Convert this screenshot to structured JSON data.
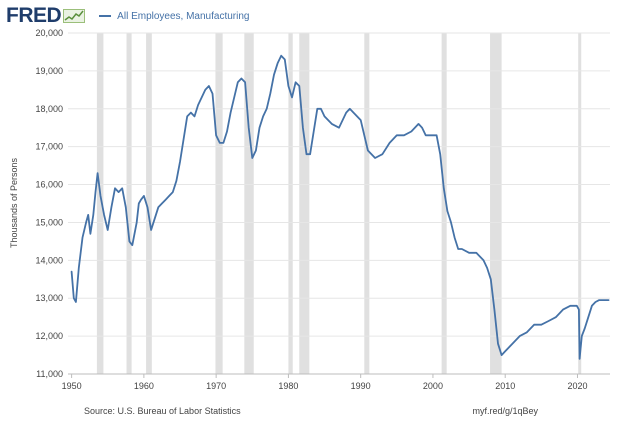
{
  "header": {
    "logo_text": "FRED",
    "legend_label": "All Employees, Manufacturing"
  },
  "footer": {
    "source": "Source: U.S. Bureau of Labor Statistics",
    "link": "myf.red/g/1qBey"
  },
  "colors": {
    "series": "#4572a7",
    "recession": "#e0e0e0",
    "grid": "#e6e6e6",
    "logo": "#1f3d6b"
  },
  "chart_data": {
    "type": "line",
    "title": "",
    "ylabel": "Thousands of Persons",
    "xlabel": "",
    "xlim": [
      1949.5,
      2024.5
    ],
    "ylim": [
      11000,
      20000
    ],
    "grid": "horizontal",
    "x_ticks": [
      1950,
      1960,
      1970,
      1980,
      1990,
      2000,
      2010,
      2020
    ],
    "x_tick_labels": [
      "1950",
      "1960",
      "1970",
      "1980",
      "1990",
      "2000",
      "2010",
      "2020"
    ],
    "y_ticks": [
      11000,
      12000,
      13000,
      14000,
      15000,
      16000,
      17000,
      18000,
      19000,
      20000
    ],
    "y_tick_labels": [
      "11,000",
      "12,000",
      "13,000",
      "14,000",
      "15,000",
      "16,000",
      "17,000",
      "18,000",
      "19,000",
      "20,000"
    ],
    "recessions": [
      [
        1953.5,
        1954.4
      ],
      [
        1957.6,
        1958.3
      ],
      [
        1960.3,
        1961.1
      ],
      [
        1969.9,
        1970.9
      ],
      [
        1973.9,
        1975.2
      ],
      [
        1980.0,
        1980.6
      ],
      [
        1981.5,
        1982.9
      ],
      [
        1990.5,
        1991.2
      ],
      [
        2001.2,
        2001.9
      ],
      [
        2007.9,
        2009.5
      ],
      [
        2020.1,
        2020.4
      ]
    ],
    "series": [
      {
        "name": "All Employees, Manufacturing",
        "x": [
          1950.0,
          1950.3,
          1950.6,
          1951.0,
          1951.5,
          1952.0,
          1952.3,
          1952.6,
          1953.0,
          1953.3,
          1953.6,
          1954.0,
          1954.5,
          1955.0,
          1955.5,
          1956.0,
          1956.5,
          1957.0,
          1957.5,
          1958.0,
          1958.4,
          1959.0,
          1959.3,
          1959.6,
          1960.0,
          1960.5,
          1961.0,
          1961.5,
          1962.0,
          1962.5,
          1963.0,
          1963.5,
          1964.0,
          1964.5,
          1965.0,
          1965.5,
          1966.0,
          1966.5,
          1967.0,
          1967.5,
          1968.0,
          1968.5,
          1969.0,
          1969.5,
          1970.0,
          1970.5,
          1971.0,
          1971.5,
          1972.0,
          1972.5,
          1973.0,
          1973.5,
          1974.0,
          1974.5,
          1975.0,
          1975.5,
          1976.0,
          1976.5,
          1977.0,
          1977.5,
          1978.0,
          1978.5,
          1979.0,
          1979.5,
          1980.0,
          1980.5,
          1981.0,
          1981.5,
          1982.0,
          1982.5,
          1983.0,
          1983.5,
          1984.0,
          1984.5,
          1985.0,
          1986.0,
          1987.0,
          1988.0,
          1988.5,
          1989.0,
          1989.5,
          1990.0,
          1990.5,
          1991.0,
          1991.5,
          1992.0,
          1993.0,
          1994.0,
          1995.0,
          1996.0,
          1997.0,
          1998.0,
          1998.5,
          1999.0,
          2000.0,
          2000.5,
          2001.0,
          2001.5,
          2002.0,
          2002.5,
          2003.0,
          2003.5,
          2004.0,
          2005.0,
          2006.0,
          2007.0,
          2007.5,
          2008.0,
          2008.5,
          2009.0,
          2009.5,
          2010.0,
          2011.0,
          2012.0,
          2013.0,
          2014.0,
          2015.0,
          2016.0,
          2017.0,
          2018.0,
          2019.0,
          2019.9,
          2020.2,
          2020.3,
          2020.6,
          2021.0,
          2021.5,
          2022.0,
          2022.5,
          2023.0,
          2023.5,
          2024.0,
          2024.3
        ],
        "values": [
          13700,
          13000,
          12900,
          13800,
          14600,
          15000,
          15200,
          14700,
          15200,
          15800,
          16300,
          15700,
          15200,
          14800,
          15400,
          15900,
          15800,
          15900,
          15400,
          14500,
          14400,
          15000,
          15500,
          15600,
          15700,
          15400,
          14800,
          15100,
          15400,
          15500,
          15600,
          15700,
          15800,
          16100,
          16600,
          17200,
          17800,
          17900,
          17800,
          18100,
          18300,
          18500,
          18600,
          18400,
          17300,
          17100,
          17100,
          17400,
          17900,
          18300,
          18700,
          18800,
          18700,
          17500,
          16700,
          16900,
          17500,
          17800,
          18000,
          18400,
          18900,
          19200,
          19400,
          19300,
          18600,
          18300,
          18700,
          18600,
          17500,
          16800,
          16800,
          17400,
          18000,
          18000,
          17800,
          17600,
          17500,
          17900,
          18000,
          17900,
          17800,
          17700,
          17300,
          16900,
          16800,
          16700,
          16800,
          17100,
          17300,
          17300,
          17400,
          17600,
          17500,
          17300,
          17300,
          17300,
          16800,
          15900,
          15300,
          15000,
          14600,
          14300,
          14300,
          14200,
          14200,
          14000,
          13800,
          13500,
          12700,
          11800,
          11500,
          11600,
          11800,
          12000,
          12100,
          12300,
          12300,
          12400,
          12500,
          12700,
          12800,
          12800,
          12700,
          11400,
          12000,
          12200,
          12500,
          12800,
          12900,
          12950,
          12950,
          12950,
          12950
        ]
      }
    ]
  }
}
